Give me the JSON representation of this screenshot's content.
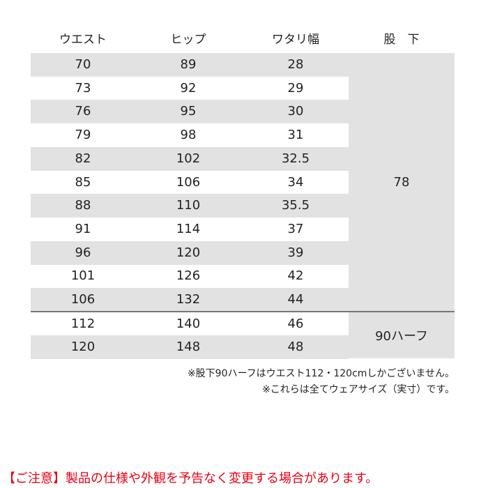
{
  "headers": [
    "ウエスト",
    "ヒップ",
    "ワタリ幅",
    "股　下"
  ],
  "rows": [
    [
      "70",
      "89",
      "28"
    ],
    [
      "73",
      "92",
      "29"
    ],
    [
      "76",
      "95",
      "30"
    ],
    [
      "79",
      "98",
      "31"
    ],
    [
      "82",
      "102",
      "32.5"
    ],
    [
      "85",
      "106",
      "34"
    ],
    [
      "88",
      "110",
      "35.5"
    ],
    [
      "91",
      "114",
      "37"
    ],
    [
      "96",
      "120",
      "39"
    ],
    [
      "101",
      "126",
      "42"
    ],
    [
      "106",
      "132",
      "44"
    ],
    [
      "112",
      "140",
      "46"
    ],
    [
      "120",
      "148",
      "48"
    ]
  ],
  "inseam": [
    "78",
    "90ハーフ"
  ],
  "notes": [
    "※股下90ハーフはウエスト112・120cmしかございません。",
    "※これらは全てウェアサイズ（実寸）です。"
  ],
  "warning": "【ご注意】製品の仕様や外観を予告なく変更する場合があります。",
  "colors": {
    "stripe": "#e2e2e2",
    "warning": "#e60012",
    "divider": "#777777"
  }
}
